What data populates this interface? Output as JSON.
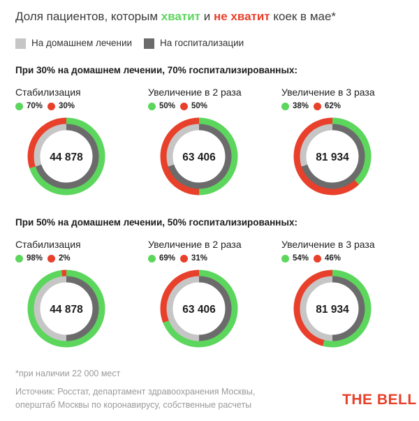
{
  "title": {
    "part1": "Доля пациентов, которым ",
    "ok": "хватит",
    "part2": " и ",
    "bad": "не хватит",
    "part3": " коек в мае*"
  },
  "legend": {
    "home": "На домашнем лечении",
    "hospital": "На госпитализации"
  },
  "colors": {
    "home": "#c6c6c6",
    "hospital": "#6b6b6b",
    "enough": "#5cd65c",
    "not_enough": "#e8402b",
    "brand": "#e8402b"
  },
  "chart_data": [
    {
      "type": "donut",
      "title": "При 30% на домашнем лечении, 70% госпитализированных:",
      "home_share": 30,
      "hospital_share": 70,
      "panels": [
        {
          "name": "Стабилизация",
          "total": "44 878",
          "enough": 70,
          "not_enough": 30,
          "enough_label": "70%",
          "not_enough_label": "30%"
        },
        {
          "name": "Увеличение в 2 раза",
          "total": "63 406",
          "enough": 50,
          "not_enough": 50,
          "enough_label": "50%",
          "not_enough_label": "50%"
        },
        {
          "name": "Увеличение в 3 раза",
          "total": "81 934",
          "enough": 38,
          "not_enough": 62,
          "enough_label": "38%",
          "not_enough_label": "62%"
        }
      ]
    },
    {
      "type": "donut",
      "title": "При 50% на домашнем лечении, 50% госпитализированных:",
      "home_share": 50,
      "hospital_share": 50,
      "panels": [
        {
          "name": "Стабилизация",
          "total": "44 878",
          "enough": 98,
          "not_enough": 2,
          "enough_label": "98%",
          "not_enough_label": "2%"
        },
        {
          "name": "Увеличение в 2 раза",
          "total": "63 406",
          "enough": 69,
          "not_enough": 31,
          "enough_label": "69%",
          "not_enough_label": "31%"
        },
        {
          "name": "Увеличение в 3 раза",
          "total": "81 934",
          "enough": 54,
          "not_enough": 46,
          "enough_label": "54%",
          "not_enough_label": "46%"
        }
      ]
    }
  ],
  "footnote": "*при наличии 22 000 мест",
  "source": {
    "line1": "Источник: Росстат, департамент здравоохранения Москвы,",
    "line2": "оперштаб Москвы по коронавирусу, собственные расчеты"
  },
  "brand": "THE BELL"
}
